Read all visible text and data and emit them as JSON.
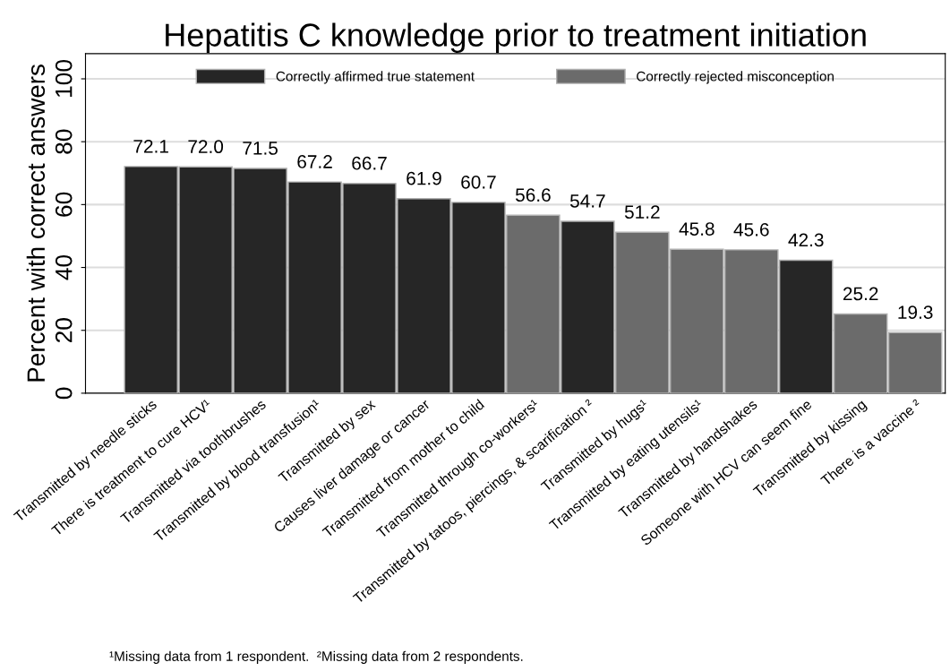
{
  "chart_data": {
    "type": "bar",
    "title": "Hepatitis C knowledge prior to treatment initiation",
    "ylabel": "Percent with correct answers",
    "categories": [
      "Transmitted by needle sticks",
      "There is treatment to cure HCV¹",
      "Transmitted via toothbrushes",
      "Transmitted by blood transfusion¹",
      "Transmitted by sex",
      "Causes liver damage or cancer",
      "Transmitted from mother to child",
      "Transmitted through co-workers¹",
      "Transmitted by tatoos, piercings, & scarification ²",
      "Transmitted by hugs¹",
      "Transmitted by eating utensils¹",
      "Transmitted by handshakes",
      "Someone with HCV can seem fine",
      "Transmitted by kissing",
      "There is a vaccine ²"
    ],
    "series": [
      {
        "name": "Correctly affirmed true statement",
        "color": "#262626",
        "values": [
          72.1,
          72.0,
          71.5,
          67.2,
          66.7,
          61.9,
          60.7,
          null,
          54.7,
          null,
          null,
          null,
          42.3,
          null,
          null
        ],
        "value_labels": [
          "72.1",
          "72.0",
          "71.5",
          "67.2",
          "66.7",
          "61.9",
          "60.7",
          null,
          "54.7",
          null,
          null,
          null,
          "42.3",
          null,
          null
        ]
      },
      {
        "name": "Correctly rejected misconception",
        "color": "#6b6b6b",
        "values": [
          null,
          null,
          null,
          null,
          null,
          null,
          null,
          56.6,
          null,
          51.2,
          45.8,
          45.6,
          null,
          25.2,
          19.3
        ],
        "value_labels": [
          null,
          null,
          null,
          null,
          null,
          null,
          null,
          "56.6",
          null,
          "51.2",
          "45.8",
          "45.6",
          null,
          "25.2",
          "19.3"
        ]
      }
    ],
    "ylim": [
      0,
      108
    ],
    "yticks": [
      0,
      20,
      40,
      60,
      80,
      100
    ],
    "grid": "y",
    "legend": "top",
    "annotations": [
      "¹Missing data from 1 respondent.  ²Missing data from 2 respondents."
    ]
  }
}
